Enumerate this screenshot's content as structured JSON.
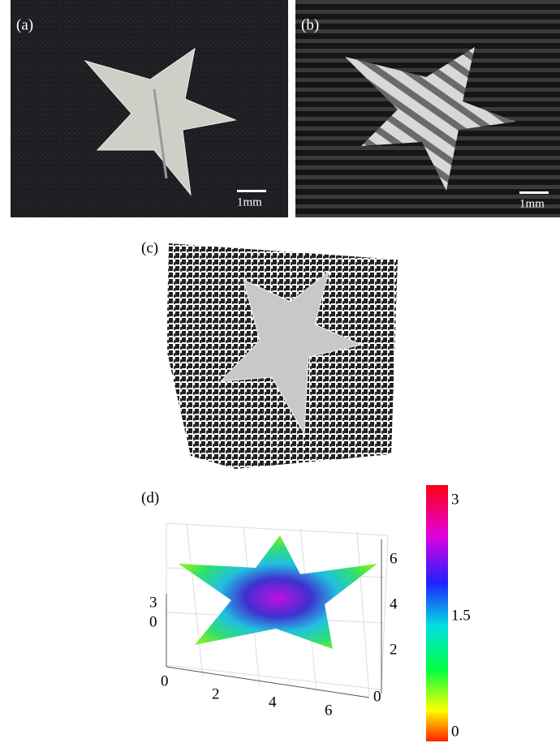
{
  "panels": [
    {
      "label": "(a)",
      "scale_bar": "1mm"
    },
    {
      "label": "(b)",
      "scale_bar": "1mm"
    },
    {
      "label": "(c)"
    },
    {
      "label": "(d)",
      "axes": {
        "z_ticks": [
          3,
          0
        ],
        "x_ticks": [
          0,
          2,
          4,
          6
        ],
        "y_ticks": [
          6,
          4,
          2,
          0
        ]
      },
      "colorbar_ticks": [
        3,
        1.5,
        0
      ]
    }
  ]
}
